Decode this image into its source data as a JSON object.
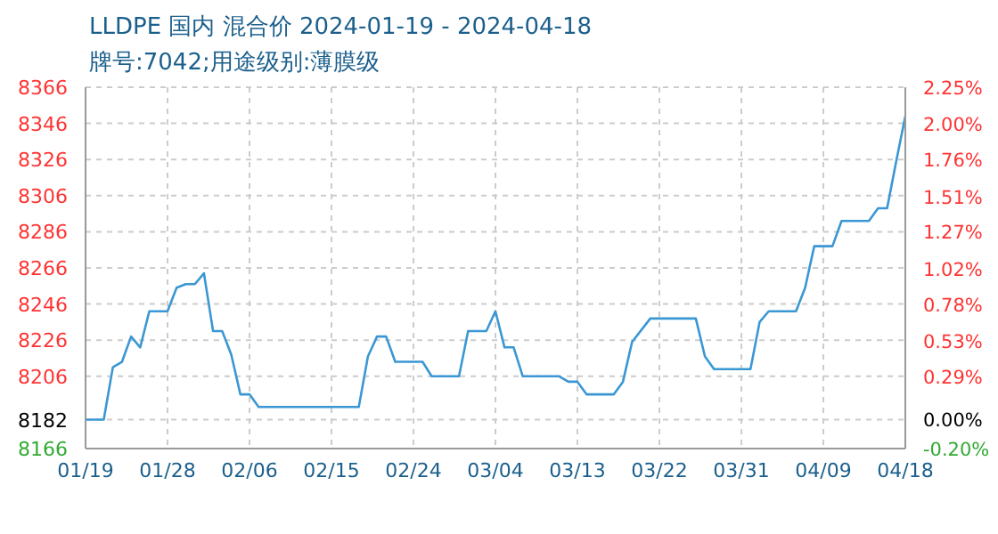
{
  "chart_data": {
    "type": "line",
    "title": "LLDPE 国内 混合价 2024-01-19 - 2024-04-18",
    "subtitle": "牌号:7042;用途级别:薄膜级",
    "x": [
      "2024-01-19",
      "2024-01-21",
      "2024-01-22",
      "2024-01-23",
      "2024-01-24",
      "2024-01-25",
      "2024-01-26",
      "2024-01-28",
      "2024-01-29",
      "2024-01-30",
      "2024-01-31",
      "2024-02-01",
      "2024-02-02",
      "2024-02-03",
      "2024-02-04",
      "2024-02-05",
      "2024-02-06",
      "2024-02-07",
      "2024-02-18",
      "2024-02-19",
      "2024-02-20",
      "2024-02-21",
      "2024-02-22",
      "2024-02-25",
      "2024-02-26",
      "2024-02-29",
      "2024-03-01",
      "2024-03-03",
      "2024-03-04",
      "2024-03-05",
      "2024-03-06",
      "2024-03-07",
      "2024-03-11",
      "2024-03-12",
      "2024-03-13",
      "2024-03-14",
      "2024-03-17",
      "2024-03-18",
      "2024-03-19",
      "2024-03-21",
      "2024-03-26",
      "2024-03-27",
      "2024-03-28",
      "2024-04-01",
      "2024-04-02",
      "2024-04-03",
      "2024-04-06",
      "2024-04-07",
      "2024-04-08",
      "2024-04-10",
      "2024-04-11",
      "2024-04-14",
      "2024-04-15",
      "2024-04-16",
      "2024-04-17",
      "2024-04-18"
    ],
    "series": [
      {
        "color": "#3b97d3",
        "values": [
          8182,
          8182,
          8211,
          8214,
          8228,
          8222,
          8242,
          8242,
          8255,
          8257,
          8257,
          8263,
          8231,
          8231,
          8218,
          8196,
          8196,
          8189,
          8189,
          8217,
          8228,
          8228,
          8214,
          8214,
          8206,
          8206,
          8231,
          8231,
          8242,
          8222,
          8222,
          8206,
          8206,
          8203,
          8203,
          8196,
          8196,
          8203,
          8225,
          8238,
          8238,
          8217,
          8210,
          8210,
          8236,
          8242,
          8242,
          8255,
          8278,
          8278,
          8292,
          8292,
          8299,
          8299,
          8325,
          8350
        ]
      }
    ],
    "xlim": [
      "2024-01-19",
      "2024-04-18"
    ],
    "xticks": [
      {
        "value": "2024-01-19",
        "label": "01/19"
      },
      {
        "value": "2024-01-28",
        "label": "01/28"
      },
      {
        "value": "2024-02-06",
        "label": "02/06"
      },
      {
        "value": "2024-02-15",
        "label": "02/15"
      },
      {
        "value": "2024-02-24",
        "label": "02/24"
      },
      {
        "value": "2024-03-04",
        "label": "03/04"
      },
      {
        "value": "2024-03-13",
        "label": "03/13"
      },
      {
        "value": "2024-03-22",
        "label": "03/22"
      },
      {
        "value": "2024-03-31",
        "label": "03/31"
      },
      {
        "value": "2024-04-09",
        "label": "04/09"
      },
      {
        "value": "2024-04-18",
        "label": "04/18"
      }
    ],
    "ylim": [
      8166,
      8366
    ],
    "yticks": [
      8166,
      8182,
      8206,
      8226,
      8246,
      8266,
      8286,
      8306,
      8326,
      8346,
      8366
    ],
    "y2lim": [
      -0.2,
      2.25
    ],
    "y2ticks": [
      {
        "value": -0.2,
        "label": "-0.20%"
      },
      {
        "value": 0,
        "label": "0.00%"
      },
      {
        "value": 0.29,
        "label": "0.29%"
      },
      {
        "value": 0.53,
        "label": "0.53%"
      },
      {
        "value": 0.78,
        "label": "0.78%"
      },
      {
        "value": 1.02,
        "label": "1.02%"
      },
      {
        "value": 1.27,
        "label": "1.27%"
      },
      {
        "value": 1.51,
        "label": "1.51%"
      },
      {
        "value": 1.76,
        "label": "1.76%"
      },
      {
        "value": 2.0,
        "label": "2.00%"
      },
      {
        "value": 2.25,
        "label": "2.25%"
      }
    ],
    "grid": true,
    "marker": "none",
    "line_style": "solid"
  }
}
